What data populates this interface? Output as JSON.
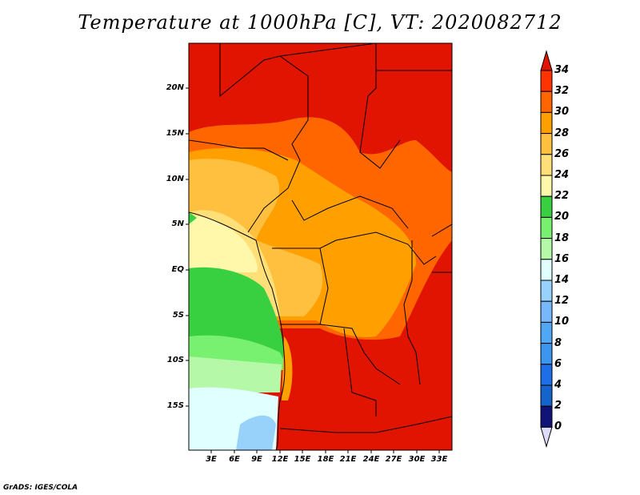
{
  "title": "Temperature at 1000hPa [C], VT: 2020082712",
  "credit": "GrADS: IGES/COLA",
  "map": {
    "lat_labels": [
      "20N",
      "15N",
      "10N",
      "5N",
      "EQ",
      "5S",
      "10S",
      "15S"
    ],
    "lon_labels": [
      "3E",
      "6E",
      "9E",
      "12E",
      "15E",
      "18E",
      "21E",
      "24E",
      "27E",
      "30E",
      "33E"
    ]
  },
  "colorbar": {
    "labels": [
      "34",
      "32",
      "30",
      "28",
      "26",
      "24",
      "22",
      "20",
      "18",
      "16",
      "14",
      "12",
      "10",
      "8",
      "6",
      "4",
      "2",
      "0"
    ],
    "colors": [
      "#e01400",
      "#ff3300",
      "#ff6600",
      "#ffa000",
      "#ffc040",
      "#ffe078",
      "#fff8aa",
      "#38d040",
      "#78f070",
      "#b4f8a8",
      "#e0ffff",
      "#98d2fa",
      "#78b8fa",
      "#50a8f5",
      "#3c96f0",
      "#1e6ee8",
      "#1464cc",
      "#101478",
      "#dcdcfa"
    ]
  }
}
